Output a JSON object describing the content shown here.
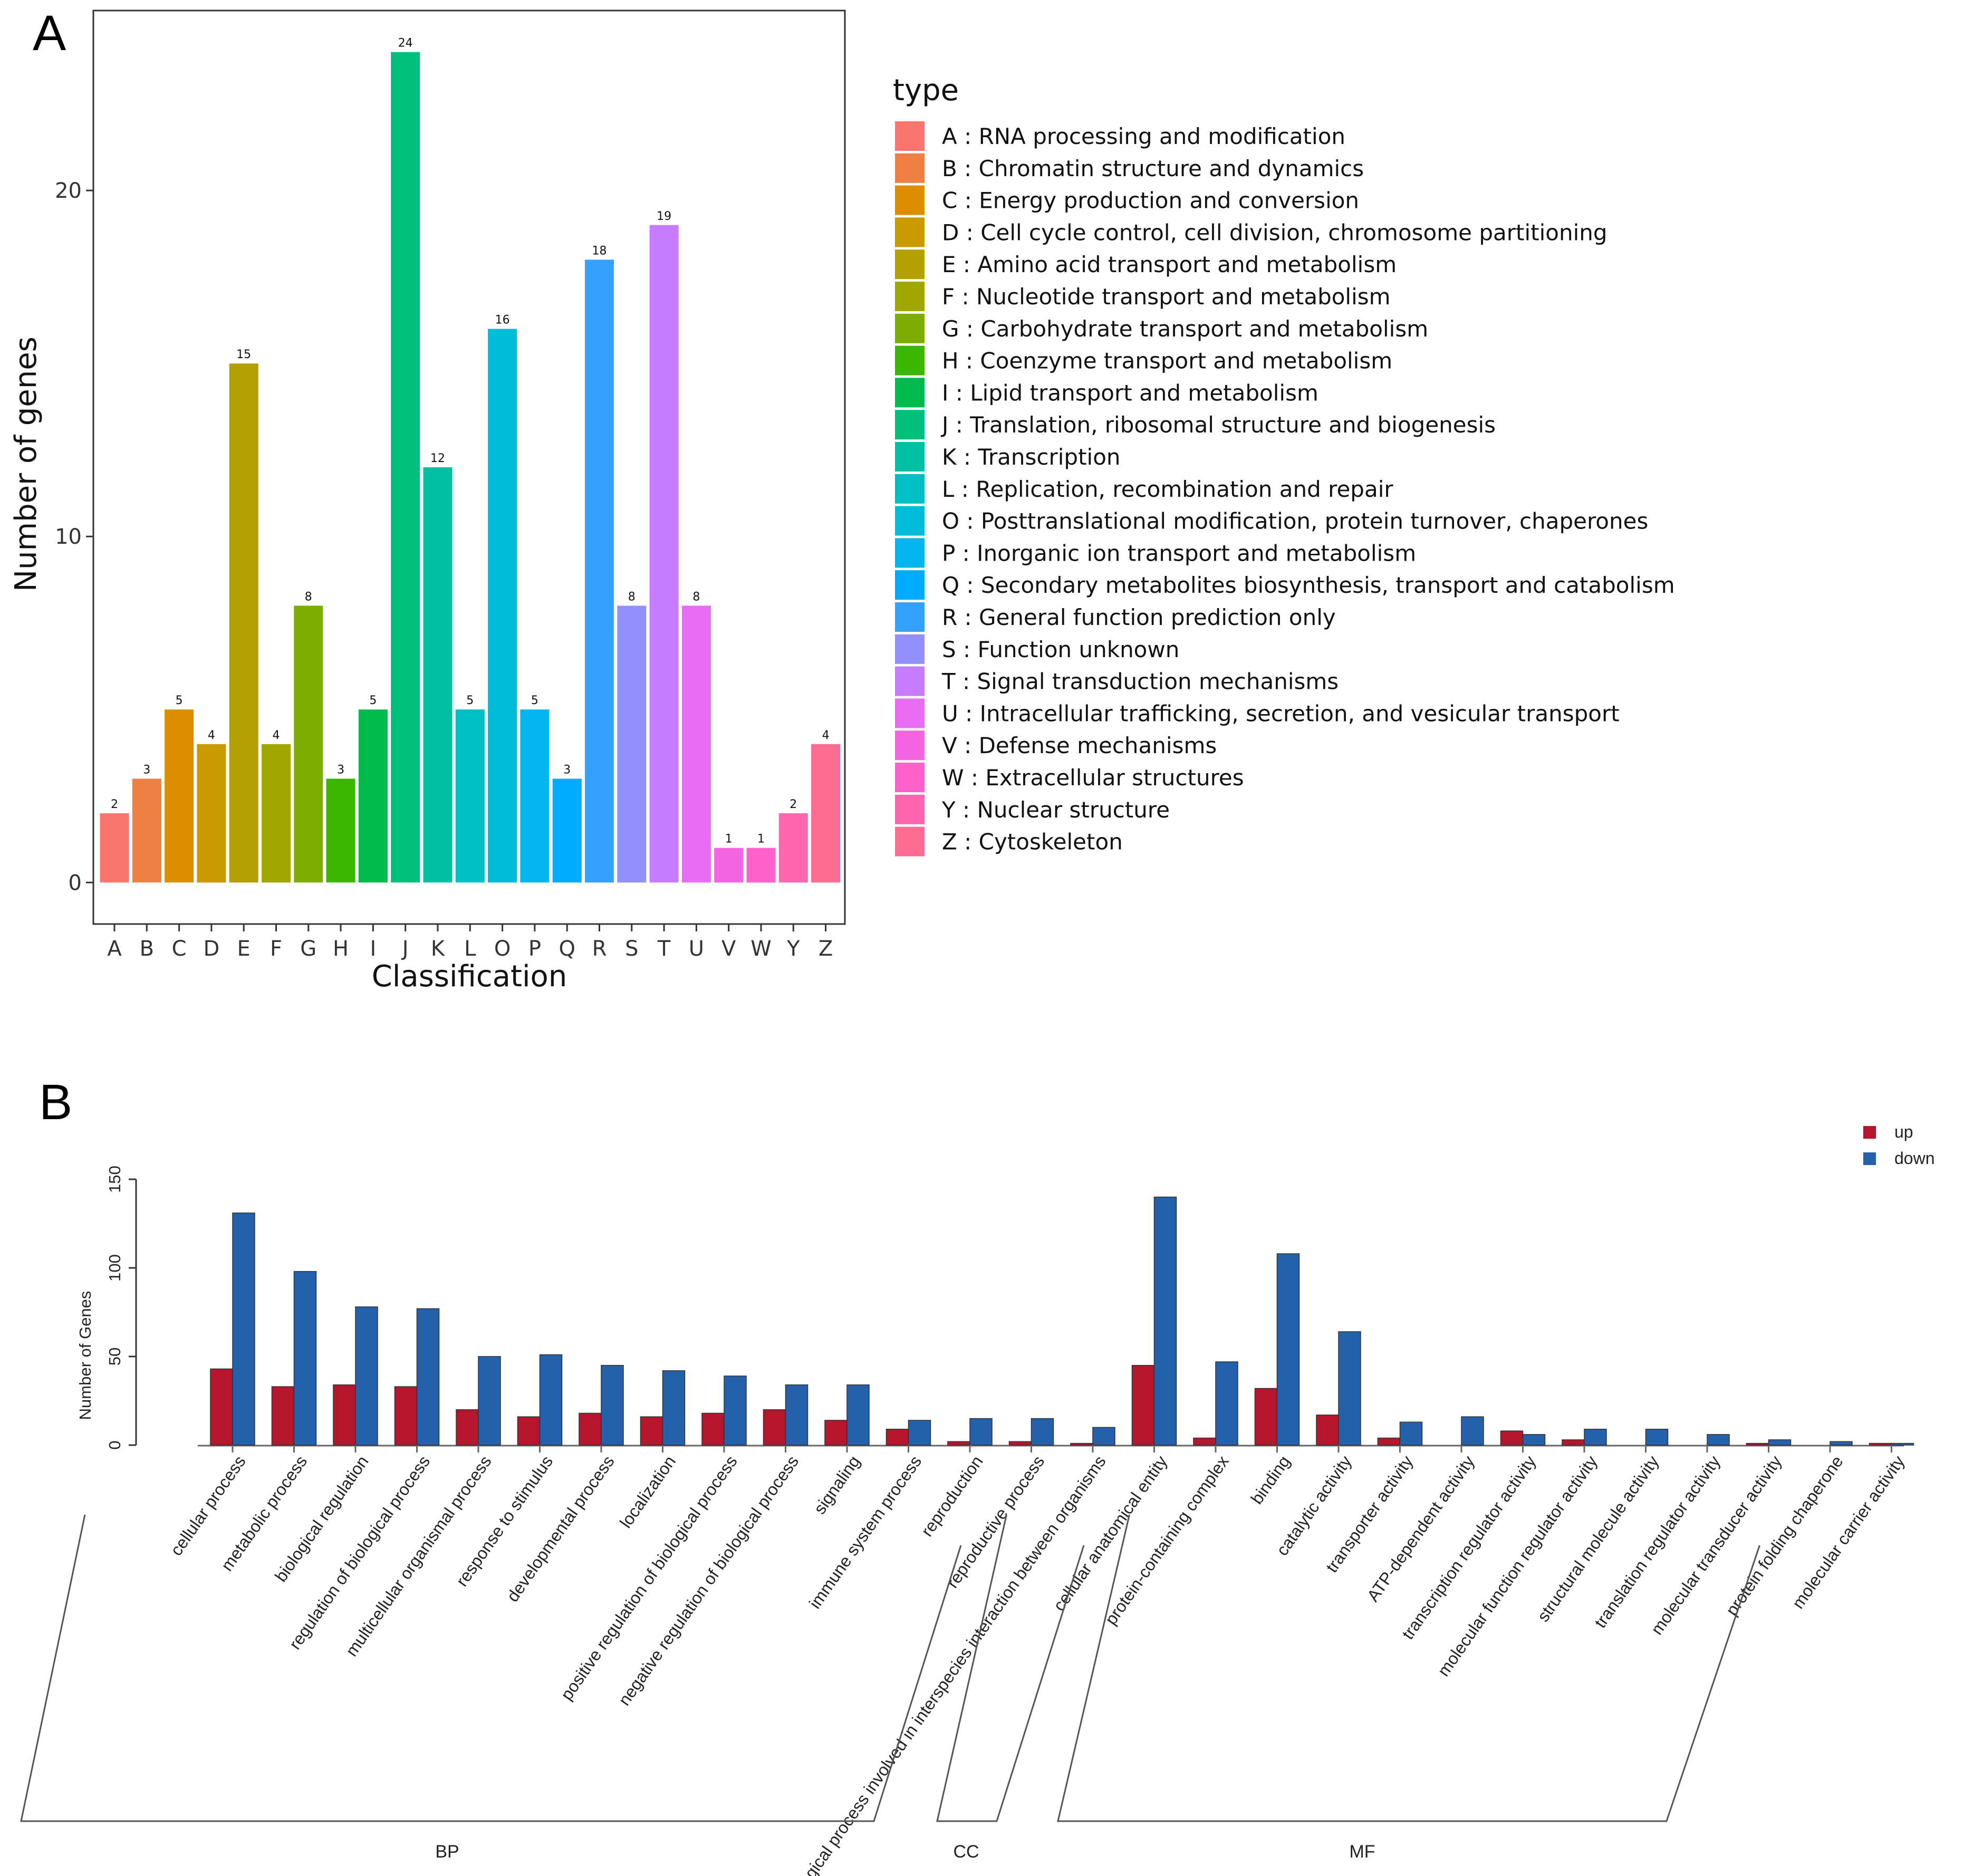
{
  "panel_a": {
    "label": "A"
  },
  "panel_b": {
    "label": "B"
  },
  "chart_data": [
    {
      "type": "bar",
      "title": "",
      "xlabel": "Classification",
      "ylabel": "Number of genes",
      "ylim": [
        -1.2,
        25.2
      ],
      "yticks": [
        0,
        10,
        20
      ],
      "categories": [
        "A",
        "B",
        "C",
        "D",
        "E",
        "F",
        "G",
        "H",
        "I",
        "J",
        "K",
        "L",
        "O",
        "P",
        "Q",
        "R",
        "S",
        "T",
        "U",
        "V",
        "W",
        "Y",
        "Z"
      ],
      "values": [
        2,
        3,
        5,
        4,
        15,
        4,
        8,
        3,
        5,
        24,
        12,
        5,
        16,
        5,
        3,
        18,
        8,
        19,
        8,
        1,
        1,
        2,
        4
      ],
      "value_labels": [
        "2",
        "3",
        "5",
        "4",
        "15",
        "4",
        "8",
        "3",
        "5",
        "24",
        "12",
        "5",
        "16",
        "5",
        "3",
        "18",
        "8",
        "19",
        "8",
        "1",
        "1",
        "2",
        "4"
      ],
      "colors": [
        "#F8766D",
        "#EE8044",
        "#DB8E00",
        "#C89A00",
        "#B2A000",
        "#9FA700",
        "#7CAE00",
        "#39B600",
        "#00BB4E",
        "#00BF7D",
        "#00C1A3",
        "#00BFC4",
        "#00BCD8",
        "#00B6EB",
        "#00ABFD",
        "#35A2FF",
        "#9590FF",
        "#C77CFF",
        "#E76BF3",
        "#F564E3",
        "#FF61CC",
        "#FF65AE",
        "#FF6C91"
      ],
      "legend": {
        "title": "type",
        "entries": [
          "A : RNA processing and modification",
          "B : Chromatin structure and dynamics",
          "C : Energy production and conversion",
          "D : Cell cycle control, cell division, chromosome partitioning",
          "E : Amino acid transport and metabolism",
          "F : Nucleotide transport and metabolism",
          "G : Carbohydrate transport and metabolism",
          "H : Coenzyme transport and metabolism",
          "I : Lipid transport and metabolism",
          "J : Translation, ribosomal structure and biogenesis",
          "K : Transcription",
          "L : Replication, recombination and repair",
          "O : Posttranslational modification, protein turnover, chaperones",
          "P : Inorganic ion transport and metabolism",
          "Q : Secondary metabolites biosynthesis, transport and catabolism",
          "R : General function prediction only",
          "S : Function unknown",
          "T : Signal transduction mechanisms",
          "U : Intracellular trafficking, secretion, and vesicular transport",
          "V : Defense mechanisms",
          "W : Extracellular structures",
          "Y : Nuclear structure",
          "Z : Cytoskeleton"
        ],
        "placement": "right"
      }
    },
    {
      "type": "bar",
      "title": "",
      "xlabel": "",
      "ylabel": "Number of Genes",
      "ylim": [
        0,
        150
      ],
      "yticks": [
        0,
        50,
        100,
        150
      ],
      "categories": [
        "cellular process",
        "metabolic process",
        "biological regulation",
        "regulation of biological process",
        "multicellular organismal process",
        "response to stimulus",
        "developmental process",
        "localization",
        "positive regulation of biological process",
        "negative regulation of biological process",
        "signaling",
        "immune system process",
        "reproduction",
        "reproductive process",
        "biological process involved in interspecies interaction between organisms",
        "cellular anatomical entity",
        "protein-containing complex",
        "binding",
        "catalytic activity",
        "transporter activity",
        "ATP-dependent activity",
        "transcription regulator activity",
        "molecular function regulator activity",
        "structural molecule activity",
        "translation regulator activity",
        "molecular transducer activity",
        "protein folding chaperone",
        "molecular carrier activity"
      ],
      "series": [
        {
          "name": "up",
          "color": "#B5162E",
          "values": [
            43,
            33,
            34,
            33,
            20,
            16,
            18,
            16,
            18,
            20,
            14,
            9,
            2,
            2,
            1,
            45,
            4,
            32,
            17,
            4,
            0,
            8,
            3,
            0,
            0,
            1,
            0,
            1
          ]
        },
        {
          "name": "down",
          "color": "#2560AC",
          "values": [
            131,
            98,
            78,
            77,
            50,
            51,
            45,
            42,
            39,
            34,
            34,
            14,
            15,
            15,
            10,
            140,
            47,
            108,
            64,
            13,
            16,
            6,
            9,
            9,
            6,
            3,
            2,
            1
          ]
        }
      ],
      "groups": [
        {
          "name": "BP",
          "range": [
            0,
            14
          ]
        },
        {
          "name": "CC",
          "range": [
            15,
            16
          ]
        },
        {
          "name": "MF",
          "range": [
            17,
            27
          ]
        }
      ],
      "legend": {
        "entries": [
          "up",
          "down"
        ],
        "placement": "top-right"
      }
    }
  ]
}
